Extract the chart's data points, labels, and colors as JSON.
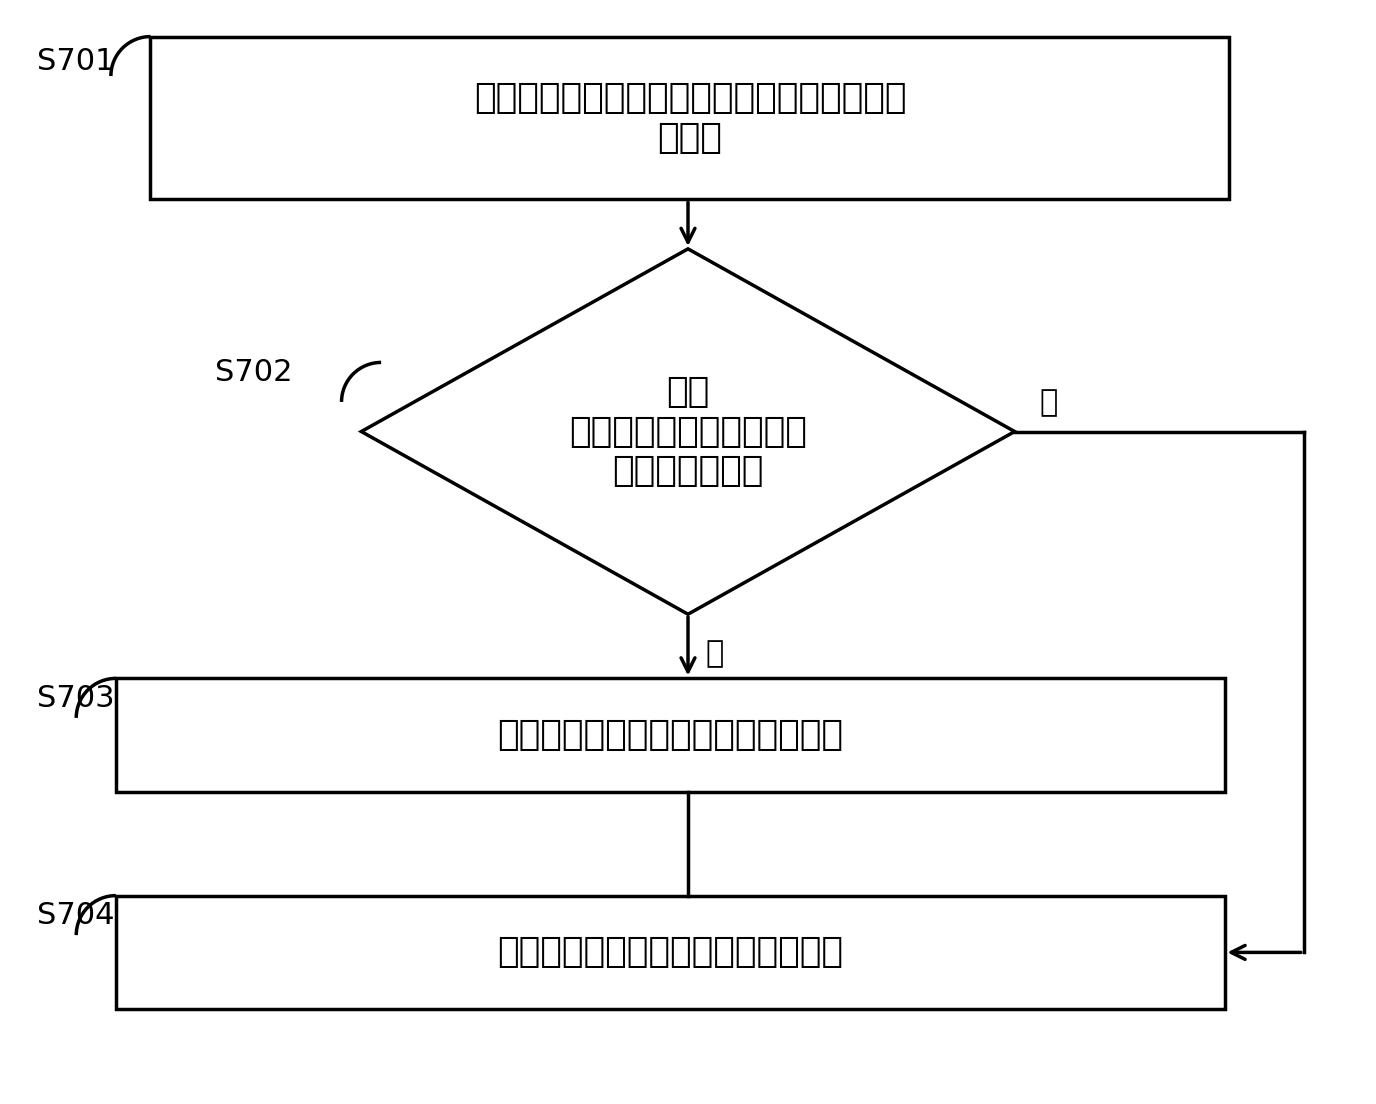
{
  "background_color": "#ffffff",
  "fig_width": 13.76,
  "fig_height": 11.04,
  "dpi": 100,
  "s701_text": "内存分配优化模块接收到为第一进程分配内存\n的请求",
  "s702_text": "判断\n第一进程对应的内存区间\n是否为可移动的",
  "s703_text": "在第一区域为第一进程分配内存区间",
  "s704_text": "在第二区域为第一进程分配内存区间",
  "label_s701": "S701",
  "label_s702": "S702",
  "label_s703": "S703",
  "label_s704": "S704",
  "yes_label": "是",
  "no_label": "否",
  "line_color": "#000000",
  "text_color": "#000000",
  "line_width": 2.5,
  "fontsize_text": 26,
  "fontsize_label": 22,
  "fontsize_branch": 22
}
